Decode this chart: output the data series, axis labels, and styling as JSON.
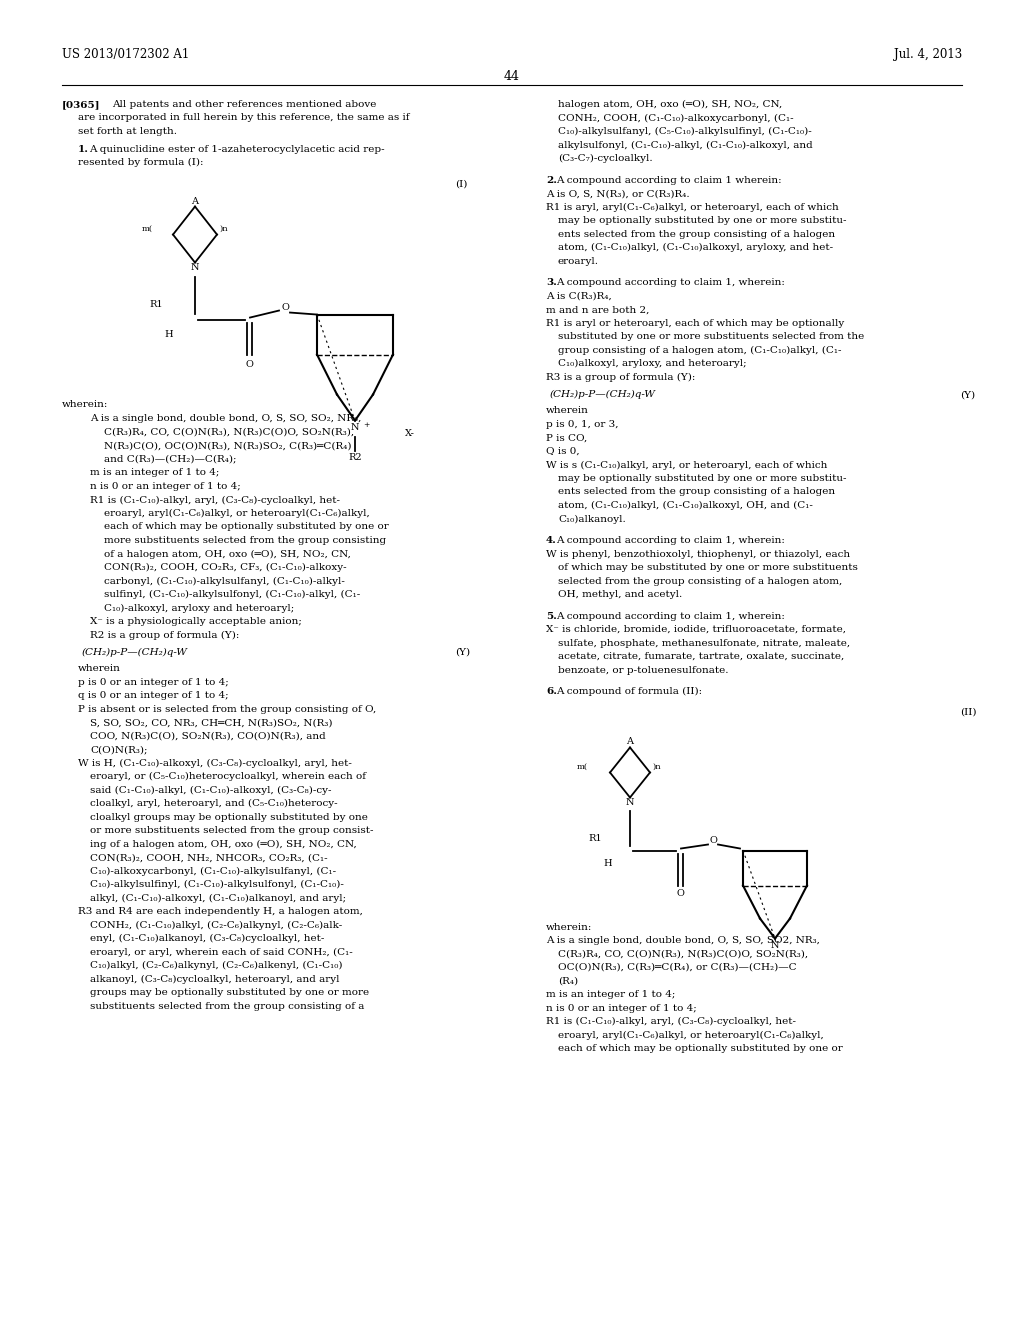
{
  "background_color": "#ffffff",
  "page_number": "44",
  "header_left": "US 2013/0172302 A1",
  "header_right": "Jul. 4, 2013",
  "font_size_body": 7.5,
  "font_size_header": 8.5,
  "font_size_page_num": 9.0,
  "text_color": "#000000",
  "lh": 0.0108
}
